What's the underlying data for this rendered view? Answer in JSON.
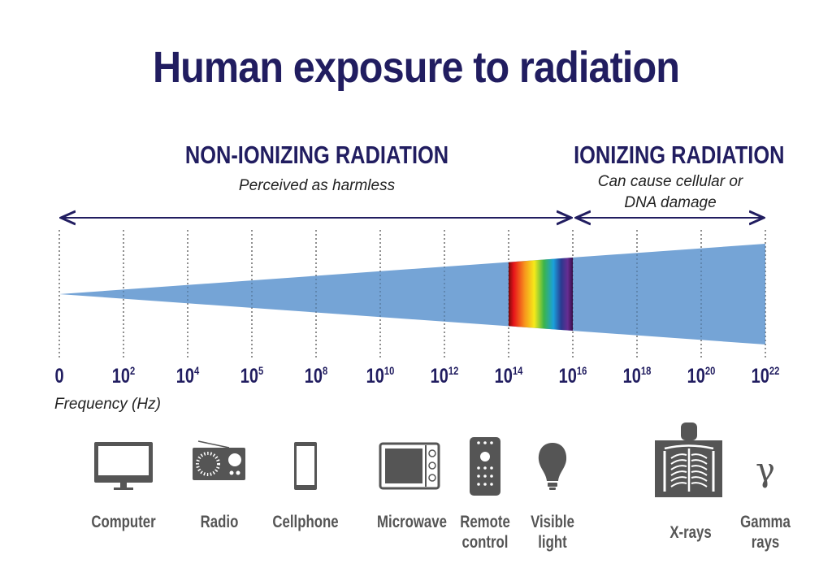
{
  "title": "Human exposure to radiation",
  "non_ionizing": {
    "heading": "NON-IONIZING RADIATION",
    "subtitle": "Perceived as harmless"
  },
  "ionizing": {
    "heading": "IONIZING RADIATION",
    "subtitle_line1": "Can cause cellular or",
    "subtitle_line2": "DNA damage"
  },
  "axis": {
    "label": "Frequency (Hz)",
    "ticks": [
      {
        "base": "0",
        "exp": ""
      },
      {
        "base": "10",
        "exp": "2"
      },
      {
        "base": "10",
        "exp": "4"
      },
      {
        "base": "10",
        "exp": "5"
      },
      {
        "base": "10",
        "exp": "8"
      },
      {
        "base": "10",
        "exp": "10"
      },
      {
        "base": "10",
        "exp": "12"
      },
      {
        "base": "10",
        "exp": "14"
      },
      {
        "base": "10",
        "exp": "16"
      },
      {
        "base": "10",
        "exp": "18"
      },
      {
        "base": "10",
        "exp": "20"
      },
      {
        "base": "10",
        "exp": "22"
      }
    ]
  },
  "colors": {
    "title": "#211d60",
    "wedge": "#75a4d6",
    "icon": "#555555"
  },
  "sources": [
    {
      "label1": "Computer",
      "label2": "",
      "icon": "computer-monitor-icon"
    },
    {
      "label1": "Radio",
      "label2": "",
      "icon": "radio-icon"
    },
    {
      "label1": "Cellphone",
      "label2": "",
      "icon": "cellphone-icon"
    },
    {
      "label1": "Microwave",
      "label2": "",
      "icon": "microwave-icon"
    },
    {
      "label1": "Remote",
      "label2": "control",
      "icon": "remote-control-icon"
    },
    {
      "label1": "Visible",
      "label2": "light",
      "icon": "light-bulb-icon"
    },
    {
      "label1": "X-rays",
      "label2": "",
      "icon": "xray-chest-icon"
    },
    {
      "label1": "Gamma",
      "label2": "rays",
      "icon": "gamma-symbol-icon"
    }
  ],
  "gamma_symbol": "γ"
}
